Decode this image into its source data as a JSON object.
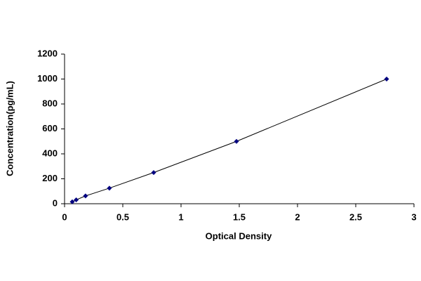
{
  "chart_data": {
    "type": "scatter",
    "x_label": "Optical Density",
    "y_label": "Concentration(pg/mL)",
    "x": [
      0.066,
      0.1,
      0.18,
      0.385,
      0.765,
      1.476,
      2.765
    ],
    "values": [
      15.6,
      31.2,
      62.5,
      125,
      250,
      500,
      1000
    ],
    "color": "#000080",
    "line_color": "#000000",
    "connect": true,
    "grid": false,
    "xlim": [
      0,
      3
    ],
    "xticks": [
      0,
      0.5,
      1,
      1.5,
      2,
      2.5,
      3
    ],
    "ylim": [
      0,
      1200
    ],
    "yticks": [
      0,
      200,
      400,
      600,
      800,
      1000,
      1200
    ]
  }
}
